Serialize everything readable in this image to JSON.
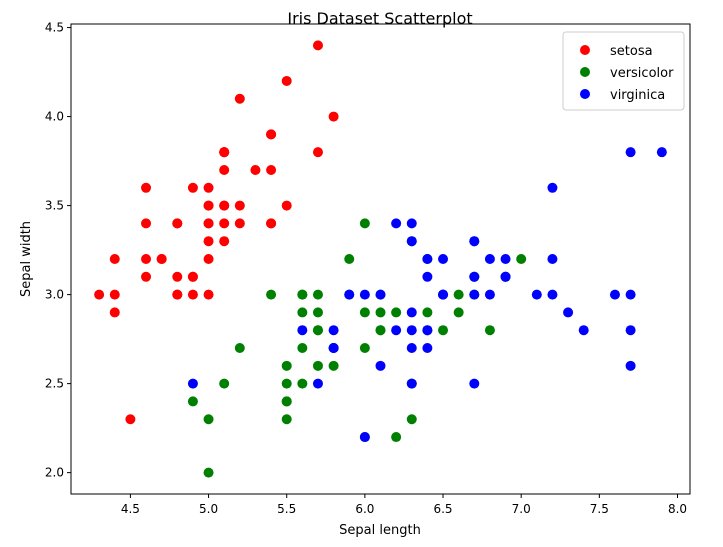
{
  "chart_data": {
    "type": "scatter",
    "title": "Iris Dataset Scatterplot",
    "xlabel": "Sepal length",
    "ylabel": "Sepal width",
    "xlim": [
      4.12,
      8.08
    ],
    "ylim": [
      1.88,
      4.52
    ],
    "xticks": [
      "4.5",
      "5.0",
      "5.5",
      "6.0",
      "6.5",
      "7.0",
      "7.5",
      "8.0"
    ],
    "yticks": [
      "2.0",
      "2.5",
      "3.0",
      "3.5",
      "4.0",
      "4.5"
    ],
    "grid": false,
    "legend_position": "top-right",
    "series": [
      {
        "name": "setosa",
        "color": "#ff0000",
        "points": [
          [
            5.1,
            3.5
          ],
          [
            4.9,
            3.0
          ],
          [
            4.7,
            3.2
          ],
          [
            4.6,
            3.1
          ],
          [
            5.0,
            3.6
          ],
          [
            5.4,
            3.9
          ],
          [
            4.6,
            3.4
          ],
          [
            5.0,
            3.4
          ],
          [
            4.4,
            2.9
          ],
          [
            4.9,
            3.1
          ],
          [
            5.4,
            3.7
          ],
          [
            4.8,
            3.4
          ],
          [
            4.8,
            3.0
          ],
          [
            4.3,
            3.0
          ],
          [
            5.8,
            4.0
          ],
          [
            5.7,
            4.4
          ],
          [
            5.4,
            3.9
          ],
          [
            5.1,
            3.5
          ],
          [
            5.7,
            3.8
          ],
          [
            5.1,
            3.8
          ],
          [
            5.4,
            3.4
          ],
          [
            5.1,
            3.7
          ],
          [
            4.6,
            3.6
          ],
          [
            5.1,
            3.3
          ],
          [
            4.8,
            3.4
          ],
          [
            5.0,
            3.0
          ],
          [
            5.0,
            3.4
          ],
          [
            5.2,
            3.5
          ],
          [
            5.2,
            3.4
          ],
          [
            4.7,
            3.2
          ],
          [
            4.8,
            3.1
          ],
          [
            5.4,
            3.4
          ],
          [
            5.2,
            4.1
          ],
          [
            5.5,
            4.2
          ],
          [
            4.9,
            3.1
          ],
          [
            5.0,
            3.2
          ],
          [
            5.5,
            3.5
          ],
          [
            4.9,
            3.6
          ],
          [
            4.4,
            3.0
          ],
          [
            5.1,
            3.4
          ],
          [
            5.0,
            3.5
          ],
          [
            4.5,
            2.3
          ],
          [
            4.4,
            3.2
          ],
          [
            5.0,
            3.5
          ],
          [
            5.1,
            3.8
          ],
          [
            4.8,
            3.0
          ],
          [
            5.1,
            3.8
          ],
          [
            4.6,
            3.2
          ],
          [
            5.3,
            3.7
          ],
          [
            5.0,
            3.3
          ]
        ]
      },
      {
        "name": "versicolor",
        "color": "#008000",
        "points": [
          [
            7.0,
            3.2
          ],
          [
            6.4,
            3.2
          ],
          [
            6.9,
            3.1
          ],
          [
            5.5,
            2.3
          ],
          [
            6.5,
            2.8
          ],
          [
            5.7,
            2.8
          ],
          [
            6.3,
            3.3
          ],
          [
            4.9,
            2.4
          ],
          [
            6.6,
            2.9
          ],
          [
            5.2,
            2.7
          ],
          [
            5.0,
            2.0
          ],
          [
            5.9,
            3.0
          ],
          [
            6.0,
            2.2
          ],
          [
            6.1,
            2.9
          ],
          [
            5.6,
            2.9
          ],
          [
            6.7,
            3.1
          ],
          [
            5.6,
            3.0
          ],
          [
            5.8,
            2.7
          ],
          [
            6.2,
            2.2
          ],
          [
            5.6,
            2.5
          ],
          [
            5.9,
            3.2
          ],
          [
            6.1,
            2.8
          ],
          [
            6.3,
            2.5
          ],
          [
            6.1,
            2.8
          ],
          [
            6.4,
            2.9
          ],
          [
            6.6,
            3.0
          ],
          [
            6.8,
            2.8
          ],
          [
            6.7,
            3.0
          ],
          [
            6.0,
            2.9
          ],
          [
            5.7,
            2.6
          ],
          [
            5.5,
            2.4
          ],
          [
            5.5,
            2.4
          ],
          [
            5.8,
            2.7
          ],
          [
            6.0,
            2.7
          ],
          [
            5.4,
            3.0
          ],
          [
            6.0,
            3.4
          ],
          [
            6.7,
            3.1
          ],
          [
            6.3,
            2.3
          ],
          [
            5.6,
            3.0
          ],
          [
            5.5,
            2.5
          ],
          [
            5.5,
            2.6
          ],
          [
            6.1,
            3.0
          ],
          [
            5.8,
            2.6
          ],
          [
            5.0,
            2.3
          ],
          [
            5.6,
            2.7
          ],
          [
            5.7,
            3.0
          ],
          [
            5.7,
            2.9
          ],
          [
            6.2,
            2.9
          ],
          [
            5.1,
            2.5
          ],
          [
            5.7,
            2.8
          ]
        ]
      },
      {
        "name": "virginica",
        "color": "#0000ff",
        "points": [
          [
            6.3,
            3.3
          ],
          [
            5.8,
            2.7
          ],
          [
            7.1,
            3.0
          ],
          [
            6.3,
            2.9
          ],
          [
            6.5,
            3.0
          ],
          [
            7.6,
            3.0
          ],
          [
            4.9,
            2.5
          ],
          [
            7.3,
            2.9
          ],
          [
            6.7,
            2.5
          ],
          [
            7.2,
            3.6
          ],
          [
            6.5,
            3.2
          ],
          [
            6.4,
            2.7
          ],
          [
            6.8,
            3.0
          ],
          [
            5.7,
            2.5
          ],
          [
            5.8,
            2.8
          ],
          [
            6.4,
            3.2
          ],
          [
            6.5,
            3.0
          ],
          [
            7.7,
            3.8
          ],
          [
            7.7,
            2.6
          ],
          [
            6.0,
            2.2
          ],
          [
            6.9,
            3.2
          ],
          [
            5.6,
            2.8
          ],
          [
            7.7,
            2.8
          ],
          [
            6.3,
            2.7
          ],
          [
            6.7,
            3.3
          ],
          [
            7.2,
            3.2
          ],
          [
            6.2,
            2.8
          ],
          [
            6.1,
            3.0
          ],
          [
            6.4,
            2.8
          ],
          [
            7.2,
            3.0
          ],
          [
            7.4,
            2.8
          ],
          [
            7.9,
            3.8
          ],
          [
            6.4,
            2.8
          ],
          [
            6.3,
            2.8
          ],
          [
            6.1,
            2.6
          ],
          [
            7.7,
            3.0
          ],
          [
            6.3,
            3.4
          ],
          [
            6.4,
            3.1
          ],
          [
            6.0,
            3.0
          ],
          [
            6.9,
            3.1
          ],
          [
            6.7,
            3.1
          ],
          [
            6.9,
            3.1
          ],
          [
            5.8,
            2.7
          ],
          [
            6.8,
            3.2
          ],
          [
            6.7,
            3.3
          ],
          [
            6.7,
            3.0
          ],
          [
            6.3,
            2.5
          ],
          [
            6.5,
            3.0
          ],
          [
            6.2,
            3.4
          ],
          [
            5.9,
            3.0
          ]
        ]
      }
    ]
  }
}
